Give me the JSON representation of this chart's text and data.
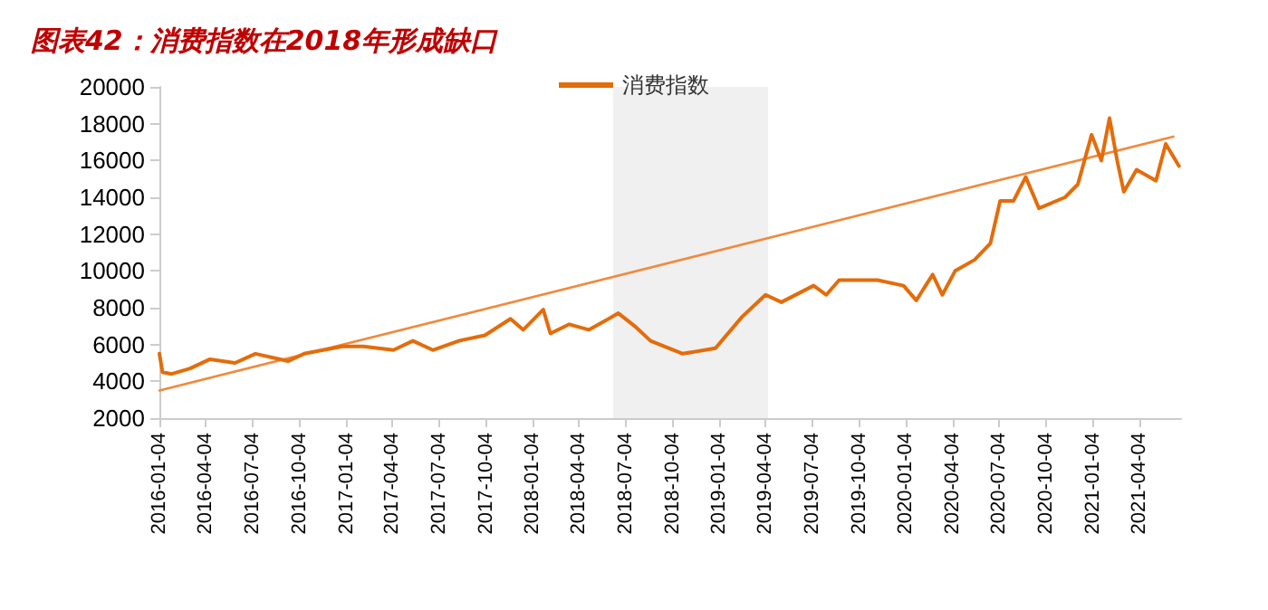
{
  "chart_data": {
    "type": "line",
    "title": "图表42：消费指数在2018年形成缺口",
    "legend": "top",
    "x": [
      "2016-01-04",
      "2016-01-10",
      "2016-01-28",
      "2016-03-04",
      "2016-04-12",
      "2016-05-31",
      "2016-07-10",
      "2016-09-12",
      "2016-10-13",
      "2016-12-27",
      "2017-02-06",
      "2017-04-06",
      "2017-05-14",
      "2017-06-22",
      "2017-08-12",
      "2017-10-02",
      "2017-11-21",
      "2017-12-16",
      "2018-01-24",
      "2018-02-07",
      "2018-03-16",
      "2018-04-23",
      "2018-06-01",
      "2018-06-20",
      "2018-07-22",
      "2018-08-22",
      "2018-10-24",
      "2018-12-27",
      "2019-02-17",
      "2019-04-04",
      "2019-05-05",
      "2019-07-07",
      "2019-08-01",
      "2019-08-26",
      "2019-11-09",
      "2019-12-30",
      "2020-01-24",
      "2020-02-25",
      "2020-03-15",
      "2020-04-09",
      "2020-05-17",
      "2020-06-17",
      "2020-07-06",
      "2020-08-01",
      "2020-08-25",
      "2020-09-20",
      "2020-11-10",
      "2020-12-05",
      "2021-01-01",
      "2021-01-20",
      "2021-02-05",
      "2021-02-20",
      "2021-03-05",
      "2021-03-30",
      "2021-05-07",
      "2021-05-26",
      "2021-06-21"
    ],
    "series": [
      {
        "name": "消费指数",
        "color": "#e46c0a",
        "values": [
          5500,
          4500,
          4400,
          4700,
          5200,
          5000,
          5500,
          5100,
          5500,
          5900,
          5900,
          5700,
          6200,
          5700,
          6200,
          6500,
          7400,
          6800,
          7900,
          6600,
          7100,
          6800,
          7400,
          7700,
          7000,
          6200,
          5500,
          5800,
          7500,
          8700,
          8300,
          9200,
          8700,
          9500,
          9500,
          9200,
          8400,
          9800,
          8700,
          10000,
          10600,
          11500,
          13800,
          13800,
          15100,
          13400,
          14000,
          14700,
          17400,
          16000,
          18300,
          16000,
          14300,
          15500,
          14900,
          16900,
          15700
        ]
      },
      {
        "type": "line",
        "color": "#f08a3c",
        "x": [
          "2016-01-04",
          "2021-06-10"
        ],
        "values": [
          3500,
          17300
        ]
      }
    ],
    "bands": [
      {
        "axis": "x",
        "from": "2018-06-10",
        "to": "2019-04-09",
        "color": "#e8e8e8"
      }
    ],
    "xlim": [
      "2016-01-04",
      "2021-06-25"
    ],
    "xticks": [
      "2016-01-04",
      "2016-04-04",
      "2016-07-04",
      "2016-10-04",
      "2017-01-04",
      "2017-04-04",
      "2017-07-04",
      "2017-10-04",
      "2018-01-04",
      "2018-04-04",
      "2018-07-04",
      "2018-10-04",
      "2019-01-04",
      "2019-04-04",
      "2019-07-04",
      "2019-10-04",
      "2020-01-04",
      "2020-04-04",
      "2020-07-04",
      "2020-10-04",
      "2021-01-04",
      "2021-04-04"
    ],
    "ylim": [
      2000,
      20000
    ],
    "yticks": [
      2000,
      4000,
      6000,
      8000,
      10000,
      12000,
      14000,
      16000,
      18000,
      20000
    ],
    "grid": false,
    "marker": "none",
    "line_style": "solid"
  }
}
